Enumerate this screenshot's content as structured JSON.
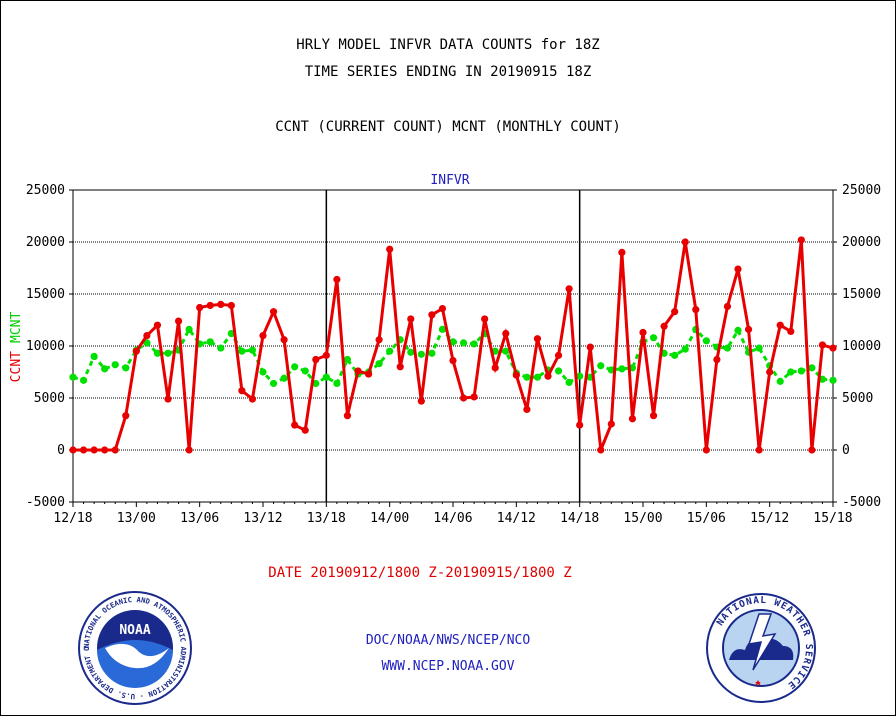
{
  "chart_data": {
    "type": "line",
    "title_lines": [
      "HRLY MODEL INFVR DATA COUNTS for 18Z",
      "TIME SERIES ENDING IN 20190915 18Z"
    ],
    "subtitle": "CCNT (CURRENT COUNT) MCNT (MONTHLY COUNT)",
    "panel_label": "INFVR",
    "ylabel_parts": [
      "CCNT",
      "MCNT"
    ],
    "xlabel": "DATE 20190912/1800 Z-20190915/1800 Z",
    "ylim": [
      -5000,
      25000
    ],
    "yticks": [
      -5000,
      0,
      5000,
      10000,
      15000,
      20000,
      25000
    ],
    "ytick_labels": [
      "-5000",
      "0",
      "5000",
      "10000",
      "15000",
      "20000",
      "25000"
    ],
    "x_range_hours": [
      0,
      72
    ],
    "xtick_labels": [
      "12/18",
      "13/00",
      "13/06",
      "13/12",
      "13/18",
      "14/00",
      "14/06",
      "14/12",
      "14/18",
      "15/00",
      "15/06",
      "15/12",
      "15/18"
    ],
    "day_dividers": [
      "13/18",
      "14/18"
    ],
    "grid": true,
    "series": [
      {
        "name": "CCNT",
        "color": "#e80000",
        "values": [
          0,
          0,
          0,
          0,
          0,
          3300,
          9500,
          11000,
          12000,
          4900,
          12400,
          0,
          13700,
          13900,
          14000,
          13900,
          5700,
          4900,
          11000,
          13300,
          10600,
          2400,
          1900,
          8700,
          9100,
          16400,
          3300,
          7600,
          7300,
          10600,
          19300,
          8000,
          12600,
          4700,
          13000,
          13600,
          8600,
          5000,
          5100,
          12600,
          7900,
          11200,
          7200,
          3900,
          10700,
          7100,
          9100,
          15500,
          2400,
          9900,
          0,
          2500,
          19000,
          3000,
          11300,
          3300,
          11900,
          13300,
          20000,
          13500,
          0,
          8700,
          13800,
          17400,
          11600,
          0,
          7500,
          12000,
          11400,
          20200,
          0,
          10100,
          9800
        ]
      },
      {
        "name": "MCNT",
        "color": "#00e000",
        "values": [
          7000,
          6700,
          9000,
          7800,
          8200,
          7900,
          9600,
          10300,
          9300,
          9300,
          9600,
          11600,
          10200,
          10400,
          9800,
          11200,
          9500,
          9600,
          7500,
          6400,
          6900,
          8000,
          7600,
          6400,
          7000,
          6400,
          8700,
          7300,
          7500,
          8300,
          9500,
          10600,
          9400,
          9200,
          9300,
          11600,
          10400,
          10300,
          10200,
          11200,
          9500,
          9500,
          7400,
          7000,
          7000,
          7700,
          7600,
          6500,
          7100,
          7000,
          8100,
          7700,
          7800,
          7900,
          10400,
          10800,
          9300,
          9100,
          9700,
          11600,
          10500,
          9900,
          9800,
          11500,
          9400,
          9800,
          8100,
          6600,
          7500,
          7600,
          7900,
          6800,
          6700
        ]
      }
    ]
  },
  "footer": {
    "line1": "DOC/NOAA/NWS/NCEP/NCO",
    "line2": "WWW.NCEP.NOAA.GOV"
  },
  "logos": {
    "noaa": {
      "center_text": "NOAA",
      "ring_text": "NATIONAL OCEANIC AND ATMOSPHERIC ADMINISTRATION · U.S. DEPARTMENT OF COMMERCE ·",
      "colors": {
        "navy": "#1a2a8c",
        "blue": "#2a6ad8",
        "white": "#ffffff"
      }
    },
    "nws": {
      "ring_text": "NATIONAL WEATHER SERVICE",
      "colors": {
        "navy": "#1a2a8c",
        "red": "#e00000",
        "lightblue": "#b8d4f0"
      }
    }
  }
}
